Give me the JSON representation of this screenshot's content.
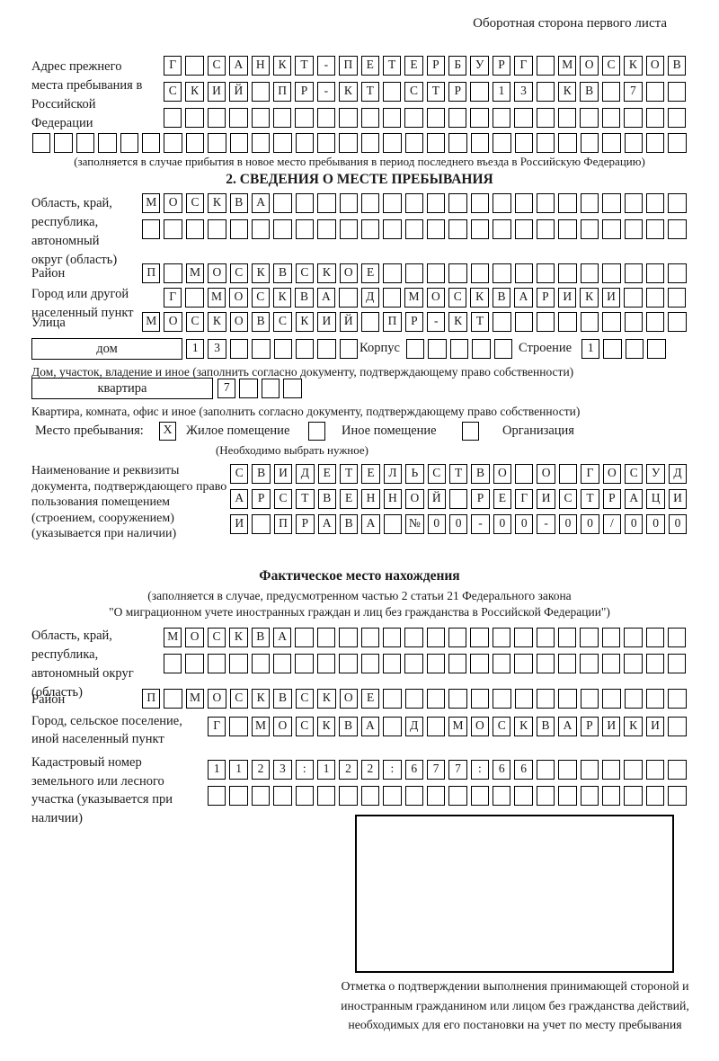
{
  "page_title": "Оборотная сторона первого листа",
  "colors": {
    "ink": "#1a1a1a",
    "paper": "#ffffff"
  },
  "prev_address": {
    "label": "Адрес прежнего места пребывания в Российской Федерации",
    "row1": "Г САНКТ-ПЕТЕРБУРГ МОСКОВ",
    "row2": "СКИЙ ПР-КТ СТР 13 КВ 7  ",
    "row3": "                        ",
    "row4": "                              ",
    "note": "(заполняется в случае прибытия в новое место пребывания в период последнего въезда в Российскую Федерацию)"
  },
  "section2": {
    "heading": "2. СВЕДЕНИЯ О МЕСТЕ ПРЕБЫВАНИЯ",
    "region": {
      "label": "Область, край, республика, автономный округ (область)",
      "row1": "МОСКВА                   ",
      "row2": "                         "
    },
    "district": {
      "label": "Район",
      "row": "П МОСКВСКОЕ              "
    },
    "city": {
      "label": "Город или другой населенный пункт",
      "row": "Г МОСКВА Д МОСКВАРИКИ   "
    },
    "street": {
      "label": "Улица",
      "row": "МОСКОВСКИЙ ПР-КТ         "
    },
    "house": {
      "box_label": "дом",
      "cells": "13      ",
      "corpus_label": "Корпус",
      "corpus_cells": "     ",
      "building_label": "Строение",
      "building_cells": "1   ",
      "note": "Дом, участок, владение и иное (заполнить согласно документу, подтверждающему право собственности)"
    },
    "apartment": {
      "box_label": "квартира",
      "cells": "7   ",
      "note": "Квартира, комната, офис и иное (заполнить согласно документу, подтверждающему право собственности)"
    },
    "stay_type": {
      "label": "Место пребывания:",
      "options": [
        {
          "mark": "X",
          "label": "Жилое помещение"
        },
        {
          "mark": "",
          "label": "Иное помещение"
        },
        {
          "mark": "",
          "label": "Организация"
        }
      ],
      "note": "(Необходимо выбрать нужное)"
    },
    "document": {
      "label": "Наименование и реквизиты документа, подтверждающего право пользования помещением (строением, сооружением) (указывается при наличии)",
      "row1": "СВИДЕТЕЛЬСТВО О ГОСУД",
      "row2": "АРСТВЕННОЙ РЕГИСТРАЦИ",
      "row3": "И ПРАВА №00-00-00/000"
    }
  },
  "actual_location": {
    "heading": "Фактическое место нахождения",
    "note_line1": "(заполняется в случае, предусмотренном частью 2 статьи 21 Федерального закона",
    "note_line2": "\"О миграционном учете иностранных граждан и лиц без гражданства в Российской Федерации\")",
    "region": {
      "label": "Область, край, республика, автономный округ (область)",
      "row1": "МОСКВА                  ",
      "row2": "                        "
    },
    "district": {
      "label": "Район",
      "row": "П МОСКВСКОЕ              "
    },
    "city": {
      "label": "Город, сельское поселение, иной населенный пункт",
      "row": "Г МОСКВА Д МОСКВАРИКИ "
    },
    "cadastre": {
      "label": "Кадастровый номер земельного или лесного участка (указывается при наличии)",
      "row1": "1123:122:677:66       ",
      "row2": "                      "
    },
    "stamp_note": "Отметка о подтверждении выполнения принимающей стороной и иностранным гражданином или лицом без гражданства действий, необходимых для его постановки на учет по месту пребывания"
  }
}
